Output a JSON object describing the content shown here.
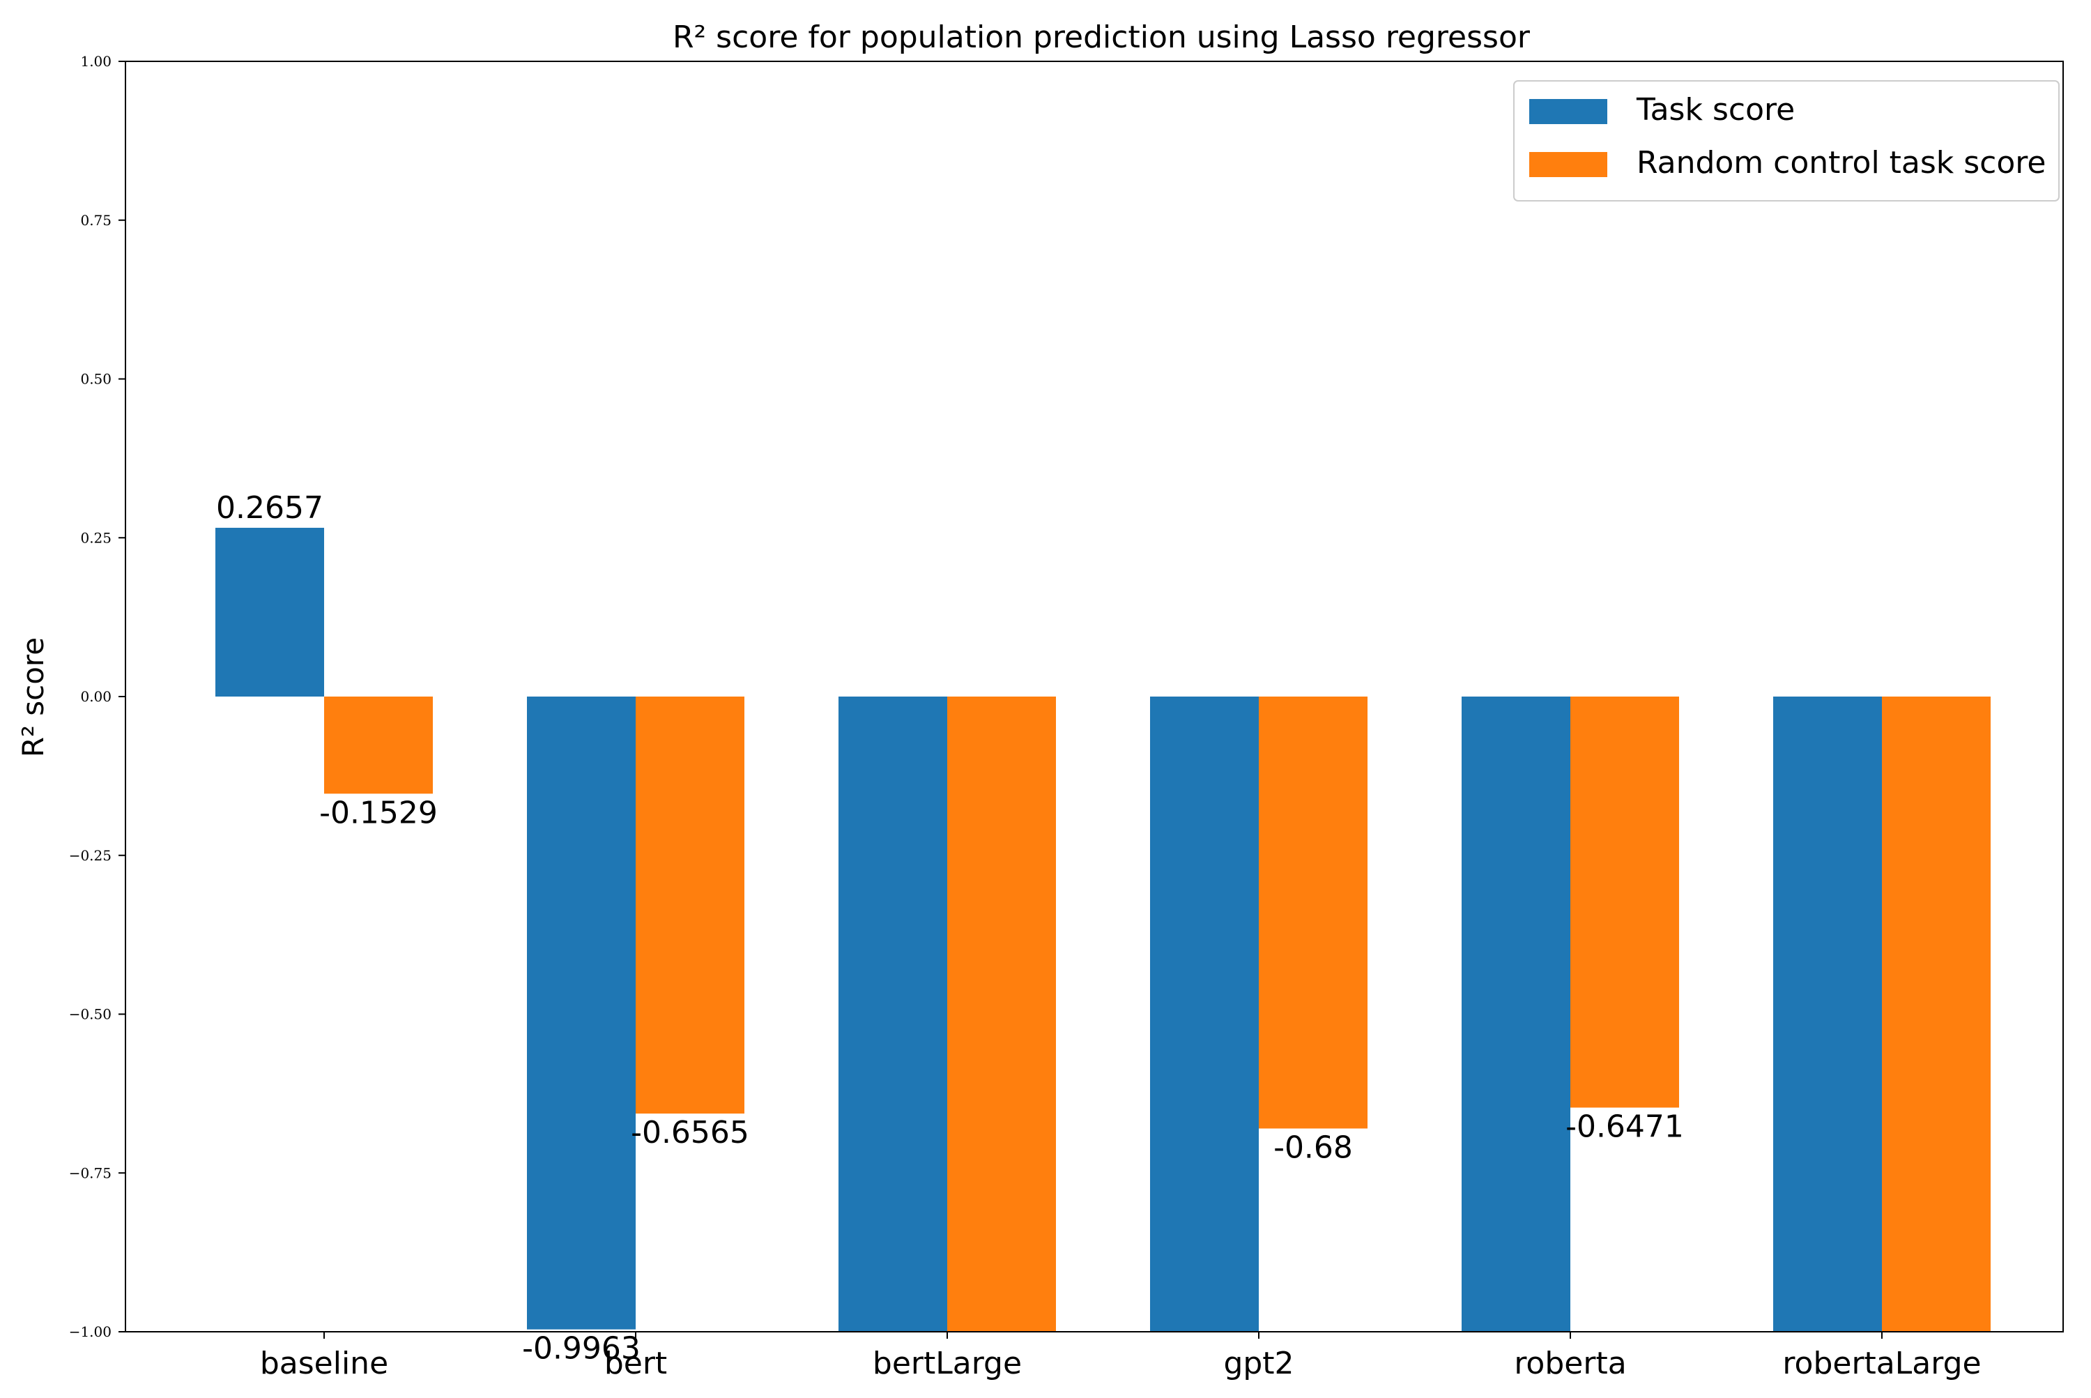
{
  "chart_data": {
    "type": "bar",
    "title": "R² score for population prediction using Lasso regressor",
    "xlabel": "",
    "ylabel": "R² score",
    "ylim": [
      -1.0,
      1.0
    ],
    "yticks": [
      -1.0,
      -0.75,
      -0.5,
      -0.25,
      0.0,
      0.25,
      0.5,
      0.75,
      1.0
    ],
    "ytick_labels": [
      "−1.00",
      "−0.75",
      "−0.50",
      "−0.25",
      "0.00",
      "0.25",
      "0.50",
      "0.75",
      "1.00"
    ],
    "categories": [
      "baseline",
      "bert",
      "bertLarge",
      "gpt2",
      "roberta",
      "robertaLarge"
    ],
    "series": [
      {
        "name": "Task score",
        "color": "#1f77b4",
        "values": [
          0.2657,
          -0.9963,
          -1.0,
          -1.0,
          -1.0,
          -1.0
        ],
        "labels": [
          "0.2657",
          "-0.9963",
          "",
          "",
          "",
          ""
        ]
      },
      {
        "name": "Random control task score",
        "color": "#ff7f0e",
        "values": [
          -0.1529,
          -0.6565,
          -1.0,
          -0.68,
          -0.6471,
          -1.0
        ],
        "labels": [
          "-0.1529",
          "-0.6565",
          "",
          "-0.68",
          "-0.6471",
          ""
        ]
      }
    ],
    "grid": false,
    "legend_position": "top-right"
  }
}
